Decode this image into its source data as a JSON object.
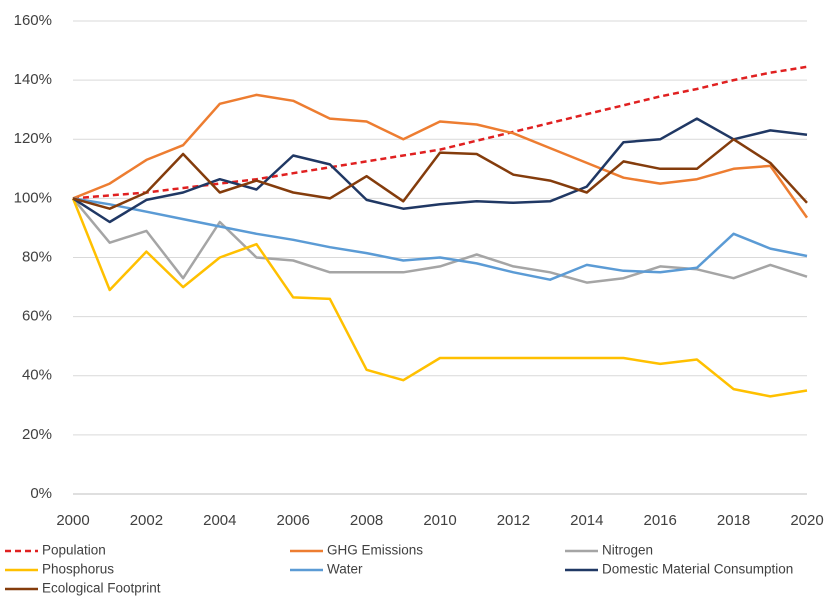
{
  "chart_data": {
    "type": "line",
    "x": [
      2000,
      2001,
      2002,
      2003,
      2004,
      2005,
      2006,
      2007,
      2008,
      2009,
      2010,
      2011,
      2012,
      2013,
      2014,
      2015,
      2016,
      2017,
      2018,
      2019,
      2020
    ],
    "xlim": [
      2000,
      2020
    ],
    "xticks": [
      2000,
      2002,
      2004,
      2006,
      2008,
      2010,
      2012,
      2014,
      2016,
      2018,
      2020
    ],
    "ylim": [
      0,
      160
    ],
    "yticks": [
      {
        "value": 0,
        "label": "0%"
      },
      {
        "value": 20,
        "label": "20%"
      },
      {
        "value": 40,
        "label": "40%"
      },
      {
        "value": 60,
        "label": "60%"
      },
      {
        "value": 80,
        "label": "80%"
      },
      {
        "value": 100,
        "label": "100%"
      },
      {
        "value": 120,
        "label": "120%"
      },
      {
        "value": 140,
        "label": "140%"
      },
      {
        "value": 160,
        "label": "160%"
      }
    ],
    "grid": true,
    "legend": "bottom",
    "series": [
      {
        "name": "Population",
        "color": "#e02020",
        "dashed": true,
        "values": [
          100,
          101,
          102,
          103.5,
          105,
          106.5,
          108.5,
          110.5,
          112.5,
          114.5,
          116.5,
          119.5,
          122.5,
          125.5,
          128.5,
          131.5,
          134.5,
          137,
          140,
          142.5,
          144.5
        ]
      },
      {
        "name": "GHG Emissions",
        "color": "#ed7d31",
        "values": [
          100,
          105,
          113,
          118,
          132,
          135,
          133,
          127,
          126,
          120,
          126,
          125,
          122,
          117,
          112,
          107,
          105,
          106.5,
          110,
          111,
          93.5
        ]
      },
      {
        "name": "Nitrogen",
        "color": "#a5a5a5",
        "values": [
          100,
          85,
          89,
          73,
          92,
          80,
          79,
          75,
          75,
          75,
          77,
          81,
          77,
          75,
          71.5,
          73,
          77,
          76,
          73,
          77.5,
          73.5
        ]
      },
      {
        "name": "Phosphorus",
        "color": "#ffc000",
        "values": [
          100,
          69,
          82,
          70,
          80,
          84.5,
          66.5,
          66,
          42,
          38.5,
          46,
          46,
          46,
          46,
          46,
          46,
          44,
          45.5,
          35.5,
          33,
          35
        ]
      },
      {
        "name": "Water",
        "color": "#5b9bd5",
        "values": [
          100,
          98,
          95.5,
          93,
          90.5,
          88,
          86,
          83.5,
          81.5,
          79,
          80,
          78,
          75,
          72.5,
          77.5,
          75.5,
          75,
          76.5,
          88,
          83,
          80.5
        ]
      },
      {
        "name": "Domestic Material Consumption",
        "color": "#203864",
        "values": [
          100,
          92,
          99.5,
          102,
          106.5,
          103,
          114.5,
          111.5,
          99.5,
          96.5,
          98,
          99,
          98.5,
          99,
          104,
          119,
          120,
          127,
          120,
          123,
          121.5
        ]
      },
      {
        "name": "Ecological Footprint",
        "color": "#843c0c",
        "values": [
          100,
          96.5,
          102,
          115,
          102,
          106,
          102,
          100,
          107.5,
          99,
          115.5,
          115,
          108,
          106,
          102,
          112.5,
          110,
          110,
          120,
          112,
          98.5
        ]
      }
    ]
  }
}
